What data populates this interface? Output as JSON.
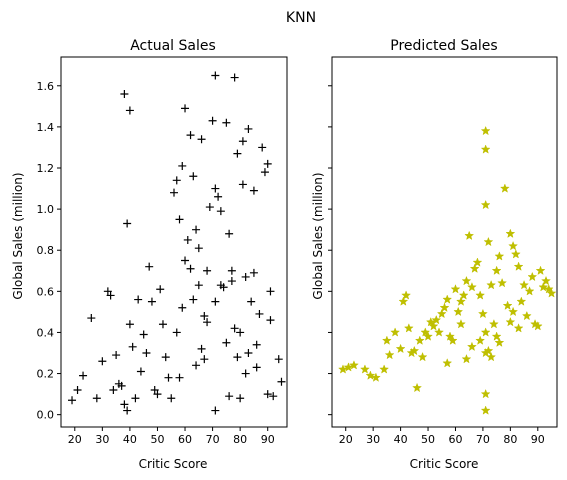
{
  "suptitle": "KNN",
  "chart_data": [
    {
      "type": "scatter",
      "title": "Actual Sales",
      "xlabel": "Critic Score",
      "ylabel": "Global Sales (million)",
      "xlim": [
        15,
        97
      ],
      "ylim": [
        -0.06,
        1.74
      ],
      "xticks": [
        20,
        30,
        40,
        50,
        60,
        70,
        80,
        90
      ],
      "yticks": [
        0.0,
        0.2,
        0.4,
        0.6,
        0.8,
        1.0,
        1.2,
        1.4,
        1.6
      ],
      "ytick_labels": [
        "0.0",
        "0.2",
        "0.4",
        "0.6",
        "0.8",
        "1.0",
        "1.2",
        "1.4",
        "1.6"
      ],
      "marker": "+",
      "color": "#000000",
      "series": [
        {
          "x": [
            19,
            21,
            23,
            26,
            28,
            30,
            32,
            33,
            34,
            35,
            36,
            37,
            38,
            38,
            39,
            39,
            40,
            40,
            41,
            42,
            43,
            44,
            45,
            46,
            47,
            48,
            49,
            50,
            51,
            52,
            53,
            54,
            55,
            56,
            57,
            58,
            59,
            60,
            61,
            62,
            63,
            64,
            65,
            66,
            67,
            68,
            69,
            70,
            71,
            71,
            71,
            71,
            72,
            73,
            74,
            75,
            76,
            77,
            78,
            79,
            80,
            81,
            82,
            83,
            84,
            85,
            86,
            87,
            88,
            89,
            90,
            91,
            92,
            94,
            95,
            57,
            58,
            59,
            60,
            66,
            67,
            75,
            76,
            77,
            78,
            80,
            81,
            82,
            85,
            86,
            90,
            91,
            64,
            65,
            63,
            73,
            79,
            83,
            68,
            62
          ],
          "y": [
            0.07,
            0.12,
            0.19,
            0.47,
            0.08,
            0.26,
            0.6,
            0.58,
            0.12,
            0.29,
            0.15,
            0.14,
            1.56,
            0.05,
            0.93,
            0.02,
            1.48,
            0.44,
            0.33,
            0.08,
            0.56,
            0.21,
            0.39,
            0.3,
            0.72,
            0.55,
            0.12,
            0.1,
            0.61,
            0.44,
            0.28,
            0.18,
            0.08,
            1.08,
            1.14,
            0.95,
            1.21,
            1.49,
            0.85,
            1.36,
            1.16,
            0.9,
            0.63,
            1.34,
            0.48,
            0.7,
            1.01,
            1.43,
            1.65,
            1.1,
            0.55,
            0.02,
            1.06,
            0.99,
            0.62,
            1.42,
            0.88,
            0.65,
            1.64,
            1.27,
            0.4,
            1.12,
            0.67,
            0.3,
            0.55,
            0.69,
            0.34,
            0.49,
            1.3,
            1.18,
            1.22,
            0.6,
            0.09,
            0.27,
            0.16,
            0.4,
            0.18,
            0.52,
            0.75,
            0.32,
            0.27,
            0.35,
            0.09,
            0.7,
            0.42,
            0.08,
            1.33,
            0.2,
            1.09,
            0.23,
            0.1,
            0.46,
            0.24,
            0.81,
            0.56,
            0.63,
            0.28,
            1.39,
            0.45,
            0.71
          ]
        }
      ]
    },
    {
      "type": "scatter",
      "title": "Predicted Sales",
      "xlabel": "Critic Score",
      "ylabel": "Global Sales (million)",
      "xlim": [
        15,
        97
      ],
      "ylim": [
        -0.06,
        1.74
      ],
      "xticks": [
        20,
        30,
        40,
        50,
        60,
        70,
        80,
        90
      ],
      "yticks": [
        0.0,
        0.2,
        0.4,
        0.6,
        0.8,
        1.0,
        1.2,
        1.4,
        1.6
      ],
      "marker": "*",
      "color": "#bfbf00",
      "series": [
        {
          "x": [
            19,
            21,
            23,
            27,
            29,
            31,
            34,
            35,
            36,
            38,
            40,
            41,
            42,
            43,
            44,
            45,
            46,
            47,
            48,
            49,
            50,
            51,
            52,
            53,
            54,
            55,
            56,
            57,
            58,
            59,
            60,
            61,
            62,
            63,
            64,
            65,
            66,
            67,
            68,
            69,
            70,
            71,
            71,
            71,
            71,
            71,
            71,
            72,
            73,
            74,
            75,
            76,
            77,
            78,
            79,
            80,
            81,
            82,
            83,
            84,
            85,
            86,
            87,
            88,
            89,
            90,
            91,
            92,
            93,
            94,
            95,
            71,
            72,
            73,
            76,
            80,
            81,
            83,
            64,
            66,
            62,
            57,
            69,
            75
          ],
          "y": [
            0.22,
            0.23,
            0.24,
            0.22,
            0.19,
            0.18,
            0.22,
            0.36,
            0.29,
            0.4,
            0.32,
            0.55,
            0.58,
            0.42,
            0.3,
            0.31,
            0.13,
            0.36,
            0.28,
            0.4,
            0.38,
            0.45,
            0.43,
            0.46,
            0.4,
            0.49,
            0.52,
            0.56,
            0.38,
            0.36,
            0.61,
            0.5,
            0.55,
            0.58,
            0.65,
            0.87,
            0.62,
            0.71,
            0.74,
            0.58,
            0.49,
            1.38,
            1.29,
            1.02,
            0.3,
            0.1,
            0.02,
            0.84,
            0.63,
            0.44,
            0.7,
            0.77,
            0.64,
            1.1,
            0.53,
            0.88,
            0.82,
            0.78,
            0.72,
            0.55,
            0.63,
            0.48,
            0.6,
            0.67,
            0.44,
            0.43,
            0.7,
            0.62,
            0.65,
            0.61,
            0.59,
            0.4,
            0.31,
            0.28,
            0.35,
            0.45,
            0.5,
            0.42,
            0.27,
            0.33,
            0.44,
            0.25,
            0.36,
            0.38
          ]
        }
      ]
    }
  ]
}
